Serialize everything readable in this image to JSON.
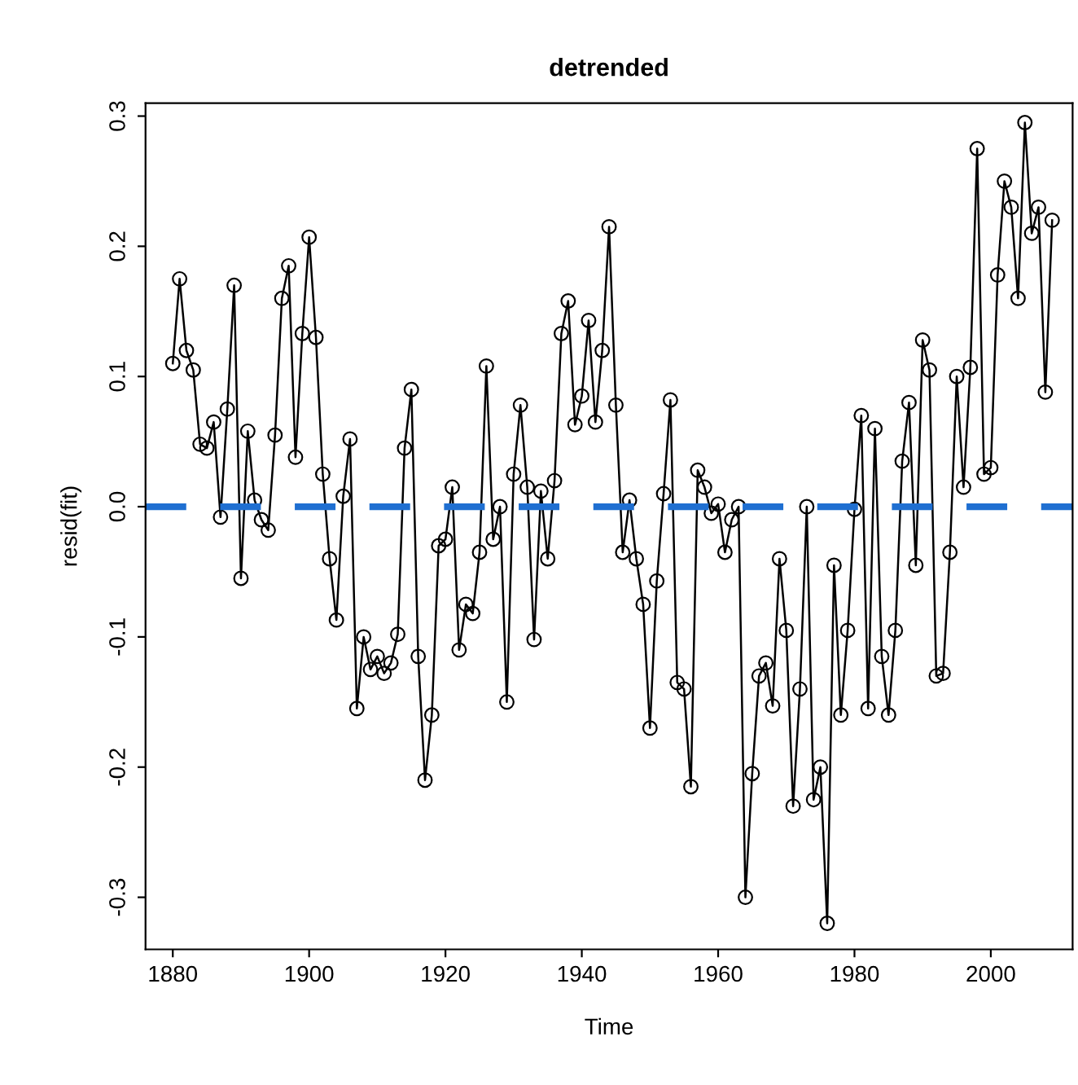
{
  "chart_data": {
    "type": "line",
    "title": "detrended",
    "xlabel": "Time",
    "ylabel": "resid(fit)",
    "x": [
      1880,
      1881,
      1882,
      1883,
      1884,
      1885,
      1886,
      1887,
      1888,
      1889,
      1890,
      1891,
      1892,
      1893,
      1894,
      1895,
      1896,
      1897,
      1898,
      1899,
      1900,
      1901,
      1902,
      1903,
      1904,
      1905,
      1906,
      1907,
      1908,
      1909,
      1910,
      1911,
      1912,
      1913,
      1914,
      1915,
      1916,
      1917,
      1918,
      1919,
      1920,
      1921,
      1922,
      1923,
      1924,
      1925,
      1926,
      1927,
      1928,
      1929,
      1930,
      1931,
      1932,
      1933,
      1934,
      1935,
      1936,
      1937,
      1938,
      1939,
      1940,
      1941,
      1942,
      1943,
      1944,
      1945,
      1946,
      1947,
      1948,
      1949,
      1950,
      1951,
      1952,
      1953,
      1954,
      1955,
      1956,
      1957,
      1958,
      1959,
      1960,
      1961,
      1962,
      1963,
      1964,
      1965,
      1966,
      1967,
      1968,
      1969,
      1970,
      1971,
      1972,
      1973,
      1974,
      1975,
      1976,
      1977,
      1978,
      1979,
      1980,
      1981,
      1982,
      1983,
      1984,
      1985,
      1986,
      1987,
      1988,
      1989,
      1990,
      1991,
      1992,
      1993,
      1994,
      1995,
      1996,
      1997,
      1998,
      1999,
      2000,
      2001,
      2002,
      2003,
      2004,
      2005,
      2006,
      2007,
      2008,
      2009
    ],
    "series": [
      {
        "color": "#000000",
        "values": [
          0.11,
          0.175,
          0.12,
          0.105,
          0.048,
          0.045,
          0.065,
          -0.008,
          0.075,
          0.17,
          -0.055,
          0.058,
          0.005,
          -0.01,
          -0.018,
          0.055,
          0.16,
          0.185,
          0.038,
          0.133,
          0.207,
          0.13,
          0.025,
          -0.04,
          -0.087,
          0.008,
          0.052,
          -0.155,
          -0.1,
          -0.125,
          -0.115,
          -0.128,
          -0.12,
          -0.098,
          0.045,
          0.09,
          -0.115,
          -0.21,
          -0.16,
          -0.03,
          -0.025,
          0.015,
          -0.11,
          -0.075,
          -0.082,
          -0.035,
          0.108,
          -0.025,
          0.0,
          -0.15,
          0.025,
          0.078,
          0.015,
          -0.102,
          0.012,
          -0.04,
          0.02,
          0.133,
          0.158,
          0.063,
          0.085,
          0.143,
          0.065,
          0.12,
          0.215,
          0.078,
          -0.035,
          0.005,
          -0.04,
          -0.075,
          -0.17,
          -0.057,
          0.01,
          0.082,
          -0.135,
          -0.14,
          -0.215,
          0.028,
          0.015,
          -0.005,
          0.002,
          -0.035,
          -0.01,
          0.0,
          -0.3,
          -0.205,
          -0.13,
          -0.12,
          -0.153,
          -0.04,
          -0.095,
          -0.23,
          -0.14,
          0.0,
          -0.225,
          -0.2,
          -0.32,
          -0.045,
          -0.16,
          -0.095,
          -0.002,
          0.07,
          -0.155,
          0.06,
          -0.115,
          -0.16,
          -0.095,
          0.035,
          0.08,
          -0.045,
          0.128,
          0.105,
          -0.13,
          -0.128,
          -0.035,
          0.1,
          0.015,
          0.107,
          0.275,
          0.025,
          0.03,
          0.178,
          0.25,
          0.23,
          0.16,
          0.295,
          0.21,
          0.23,
          0.088,
          0.22
        ]
      }
    ],
    "marker": "circle",
    "line_style": "solid",
    "xlim": [
      1876,
      2012
    ],
    "xticks": [
      1880,
      1900,
      1920,
      1940,
      1960,
      1980,
      2000
    ],
    "ylim": [
      -0.34,
      0.31
    ],
    "yticks": [
      {
        "value": -0.3,
        "label": "-0.3"
      },
      {
        "value": -0.2,
        "label": "-0.2"
      },
      {
        "value": -0.1,
        "label": "-0.1"
      },
      {
        "value": 0.0,
        "label": "0.0"
      },
      {
        "value": 0.1,
        "label": "0.1"
      },
      {
        "value": 0.2,
        "label": "0.2"
      },
      {
        "value": 0.3,
        "label": "0.3"
      }
    ],
    "ref_lines": [
      {
        "axis": "y",
        "value": 0,
        "color": "#1f6fd1",
        "line_style": "dashed"
      }
    ],
    "grid": false,
    "legend": false
  }
}
